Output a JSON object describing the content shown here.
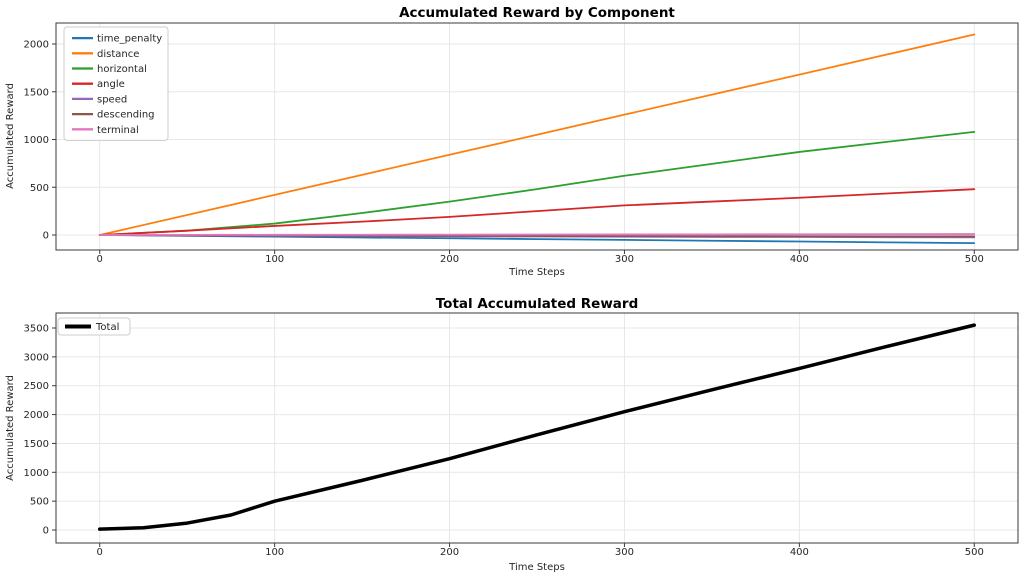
{
  "styles": {
    "background": "#ffffff",
    "grid_color": "#e7e7e7",
    "frame_color": "#3a3a3a",
    "text_color": "#262626",
    "legend_border": "#cccccc",
    "legend_fill": "rgba(255,255,255,0.9)"
  },
  "chart_data": [
    {
      "type": "line",
      "title": "Accumulated Reward by Component",
      "xlabel": "Time Steps",
      "ylabel": "Accumulated Reward",
      "x": [
        0,
        50,
        100,
        150,
        200,
        250,
        300,
        350,
        400,
        450,
        500
      ],
      "series": [
        {
          "name": "time_penalty",
          "color": "#1f77b4",
          "values": [
            0,
            -9,
            -17,
            -26,
            -34,
            -43,
            -51,
            -60,
            -68,
            -77,
            -85
          ]
        },
        {
          "name": "distance",
          "color": "#ff7f0e",
          "values": [
            0,
            210,
            420,
            630,
            840,
            1050,
            1260,
            1470,
            1680,
            1890,
            2100
          ]
        },
        {
          "name": "horizontal",
          "color": "#2ca02c",
          "values": [
            0,
            45,
            120,
            230,
            350,
            480,
            620,
            745,
            870,
            975,
            1080
          ]
        },
        {
          "name": "angle",
          "color": "#d62728",
          "values": [
            0,
            45,
            95,
            140,
            190,
            250,
            310,
            350,
            390,
            435,
            480
          ]
        },
        {
          "name": "speed",
          "color": "#9467bd",
          "values": [
            0,
            -5,
            -9,
            -12,
            -14,
            -16,
            -18,
            -20,
            -21,
            -23,
            -25
          ]
        },
        {
          "name": "descending",
          "color": "#8c564b",
          "values": [
            0,
            -3,
            -5,
            -7,
            -8,
            -10,
            -11,
            -12,
            -13,
            -14,
            -15
          ]
        },
        {
          "name": "terminal",
          "color": "#e377c2",
          "values": [
            0,
            1,
            2,
            3,
            4,
            5,
            6,
            7,
            8,
            9,
            10
          ]
        }
      ],
      "xlim": [
        -25,
        525
      ],
      "ylim": [
        -157,
        2220
      ],
      "xticks": [
        0,
        100,
        200,
        300,
        400,
        500
      ],
      "yticks": [
        0,
        500,
        1000,
        1500,
        2000
      ],
      "grid": true,
      "legend_position": "upper-left",
      "line_width": 1.8
    },
    {
      "type": "line",
      "title": "Total Accumulated Reward",
      "xlabel": "Time Steps",
      "ylabel": "Accumulated Reward",
      "x": [
        0,
        25,
        50,
        75,
        100,
        150,
        200,
        250,
        300,
        350,
        400,
        450,
        500
      ],
      "series": [
        {
          "name": "Total",
          "color": "#000000",
          "values": [
            15,
            40,
            120,
            260,
            500,
            860,
            1235,
            1650,
            2050,
            2430,
            2800,
            3180,
            3550
          ]
        }
      ],
      "xlim": [
        -25,
        525
      ],
      "ylim": [
        -225,
        3760
      ],
      "xticks": [
        0,
        100,
        200,
        300,
        400,
        500
      ],
      "yticks": [
        0,
        500,
        1000,
        1500,
        2000,
        2500,
        3000,
        3500
      ],
      "grid": true,
      "legend_position": "upper-left",
      "line_width": 3.5
    }
  ]
}
